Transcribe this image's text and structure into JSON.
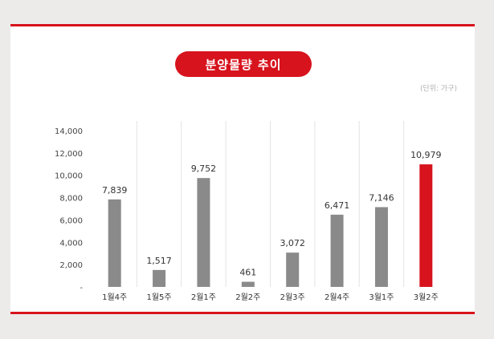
{
  "chart_data": {
    "type": "bar",
    "title": "분양물량 추이",
    "unit_note": "(단위: 가구)",
    "categories": [
      "1월4주",
      "1월5주",
      "2월1주",
      "2월2주",
      "2월3주",
      "2월4주",
      "3월1주",
      "3월2주"
    ],
    "values": [
      7839,
      1517,
      9752,
      461,
      3072,
      6471,
      7146,
      10979
    ],
    "value_labels": [
      "7,839",
      "1,517",
      "9,752",
      "461",
      "3,072",
      "6,471",
      "7,146",
      "10,979"
    ],
    "y_ticks": [
      0,
      2000,
      4000,
      6000,
      8000,
      10000,
      12000,
      14000
    ],
    "y_tick_labels": [
      "-",
      "2,000",
      "4,000",
      "6,000",
      "8,000",
      "10,000",
      "12,000",
      "14,000"
    ],
    "ylim": [
      0,
      14000
    ],
    "highlight_index": 7,
    "grid": "vertical separators",
    "colors": {
      "bar": "#8a8a8a",
      "highlight_bar": "#d7131d",
      "highlight_label": "#d7131d",
      "accent": "#d7131d",
      "separator": "#e3e3e3"
    }
  }
}
